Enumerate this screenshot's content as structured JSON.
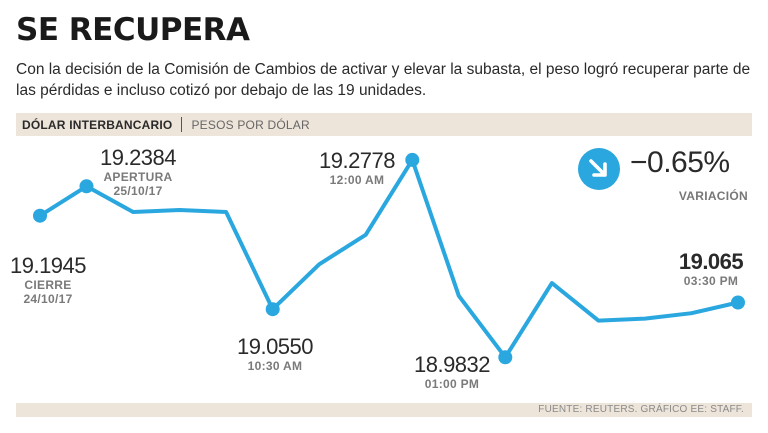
{
  "title": "SE RECUPERA",
  "subtitle": "Con la decisión de la Comisión de Cambios de activar y elevar la subasta, el peso logró recuperar parte de las pérdidas e incluso cotizó por debajo de las 19 unidades.",
  "header": {
    "main": "DÓLAR INTERBANCARIO",
    "unit": "PESOS POR DÓLAR"
  },
  "variation": {
    "value": "−0.65%",
    "label": "VARIACIÓN",
    "icon": "arrow-down-right-icon"
  },
  "source": "FUENTE: REUTERS. GRÁFICO EE: STAFF.",
  "colors": {
    "line": "#2aa7df",
    "band": "#ede4da",
    "text": "#231f20",
    "muted": "#7a7a7a"
  },
  "chart_data": {
    "type": "line",
    "title": "DÓLAR INTERBANCARIO",
    "ylabel": "PESOS POR DÓLAR",
    "ylim": [
      18.93,
      19.3
    ],
    "points": [
      19.1945,
      19.2384,
      19.2,
      19.203,
      19.2,
      19.055,
      19.122,
      19.166,
      19.2778,
      19.075,
      18.9832,
      19.094,
      19.038,
      19.041,
      19.049,
      19.065
    ],
    "labeled": [
      {
        "index": 0,
        "value": "19.1945",
        "line1": "CIERRE",
        "line2": "24/10/17"
      },
      {
        "index": 1,
        "value": "19.2384",
        "line1": "APERTURA",
        "line2": "25/10/17"
      },
      {
        "index": 5,
        "value": "19.0550",
        "line1": "10:30 AM",
        "line2": ""
      },
      {
        "index": 8,
        "value": "19.2778",
        "line1": "12:00 AM",
        "line2": ""
      },
      {
        "index": 10,
        "value": "18.9832",
        "line1": "01:00 PM",
        "line2": ""
      },
      {
        "index": 15,
        "value": "19.065",
        "line1": "03:30 PM",
        "line2": ""
      }
    ]
  }
}
